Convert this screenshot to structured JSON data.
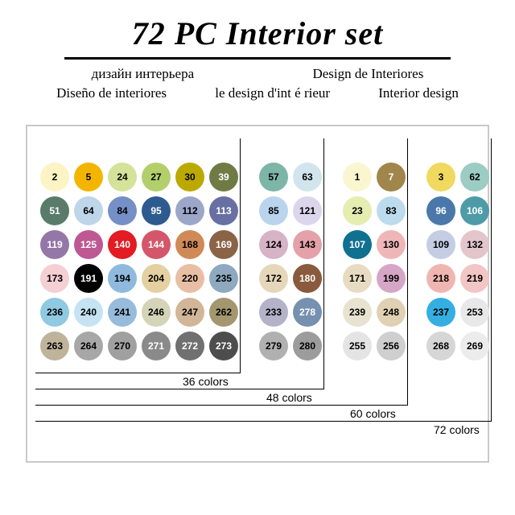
{
  "title": "72 PC Interior set",
  "subtitles_row1": [
    "дизайн интерьера",
    "Design de Interiores"
  ],
  "subtitles_row2": [
    "Diseño de interiores",
    "le design d'int é rieur",
    "Interior design"
  ],
  "circle_diameter": 36,
  "col_pitch": 42,
  "row_pitch": 42,
  "group_gap": 20,
  "font_num": 12,
  "groups": [
    {
      "cols": 6,
      "label": "36 colors",
      "swatches": [
        {
          "n": "2",
          "bg": "#fdf4c5",
          "fg": "#000"
        },
        {
          "n": "5",
          "bg": "#f3b500",
          "fg": "#000"
        },
        {
          "n": "24",
          "bg": "#d4e29a",
          "fg": "#000"
        },
        {
          "n": "27",
          "bg": "#b3cf6b",
          "fg": "#000"
        },
        {
          "n": "30",
          "bg": "#bba900",
          "fg": "#000"
        },
        {
          "n": "39",
          "bg": "#6f7b45",
          "fg": "#fff"
        },
        {
          "n": "51",
          "bg": "#5a7b6a",
          "fg": "#fff"
        },
        {
          "n": "64",
          "bg": "#bfd5e9",
          "fg": "#000"
        },
        {
          "n": "84",
          "bg": "#7590c7",
          "fg": "#000"
        },
        {
          "n": "95",
          "bg": "#2e5b8f",
          "fg": "#fff"
        },
        {
          "n": "112",
          "bg": "#9ca6c9",
          "fg": "#000"
        },
        {
          "n": "113",
          "bg": "#6870a3",
          "fg": "#fff"
        },
        {
          "n": "119",
          "bg": "#9477a7",
          "fg": "#fff"
        },
        {
          "n": "125",
          "bg": "#bd5893",
          "fg": "#fff"
        },
        {
          "n": "140",
          "bg": "#e31b23",
          "fg": "#fff"
        },
        {
          "n": "144",
          "bg": "#d4566a",
          "fg": "#fff"
        },
        {
          "n": "168",
          "bg": "#cf8a57",
          "fg": "#000"
        },
        {
          "n": "169",
          "bg": "#8b6347",
          "fg": "#fff"
        },
        {
          "n": "173",
          "bg": "#f4cfd3",
          "fg": "#000"
        },
        {
          "n": "191",
          "bg": "#000000",
          "fg": "#fff"
        },
        {
          "n": "194",
          "bg": "#8fbadd",
          "fg": "#000"
        },
        {
          "n": "204",
          "bg": "#e4d0a0",
          "fg": "#000"
        },
        {
          "n": "220",
          "bg": "#e8bfa4",
          "fg": "#000"
        },
        {
          "n": "235",
          "bg": "#8ea9c0",
          "fg": "#000"
        },
        {
          "n": "236",
          "bg": "#8fc9e2",
          "fg": "#000"
        },
        {
          "n": "240",
          "bg": "#c5e3f3",
          "fg": "#000"
        },
        {
          "n": "241",
          "bg": "#97bbdb",
          "fg": "#000"
        },
        {
          "n": "246",
          "bg": "#d4d4b8",
          "fg": "#000"
        },
        {
          "n": "247",
          "bg": "#d1b698",
          "fg": "#000"
        },
        {
          "n": "262",
          "bg": "#a3976f",
          "fg": "#000"
        },
        {
          "n": "263",
          "bg": "#bfb39c",
          "fg": "#000"
        },
        {
          "n": "264",
          "bg": "#a7a7a7",
          "fg": "#000"
        },
        {
          "n": "270",
          "bg": "#a0a0a0",
          "fg": "#000"
        },
        {
          "n": "271",
          "bg": "#8a8a8a",
          "fg": "#fff"
        },
        {
          "n": "272",
          "bg": "#707070",
          "fg": "#fff"
        },
        {
          "n": "273",
          "bg": "#4d4d4d",
          "fg": "#fff"
        }
      ]
    },
    {
      "cols": 2,
      "label": "48 colors",
      "swatches": [
        {
          "n": "57",
          "bg": "#7db6a6",
          "fg": "#000"
        },
        {
          "n": "63",
          "bg": "#d2e5ed",
          "fg": "#000"
        },
        {
          "n": "85",
          "bg": "#b9d4ed",
          "fg": "#000"
        },
        {
          "n": "121",
          "bg": "#dcd6ec",
          "fg": "#000"
        },
        {
          "n": "124",
          "bg": "#d6b3c6",
          "fg": "#000"
        },
        {
          "n": "143",
          "bg": "#e4a1a9",
          "fg": "#000"
        },
        {
          "n": "172",
          "bg": "#e6d7ba",
          "fg": "#000"
        },
        {
          "n": "180",
          "bg": "#8a5a3e",
          "fg": "#fff"
        },
        {
          "n": "233",
          "bg": "#b4b2c8",
          "fg": "#000"
        },
        {
          "n": "278",
          "bg": "#7691b0",
          "fg": "#fff"
        },
        {
          "n": "279",
          "bg": "#b0b0b0",
          "fg": "#000"
        },
        {
          "n": "280",
          "bg": "#9c9c9c",
          "fg": "#000"
        }
      ]
    },
    {
      "cols": 2,
      "label": "60 colors",
      "swatches": [
        {
          "n": "1",
          "bg": "#faf6d0",
          "fg": "#000"
        },
        {
          "n": "7",
          "bg": "#a0864b",
          "fg": "#fff"
        },
        {
          "n": "23",
          "bg": "#e5edb0",
          "fg": "#000"
        },
        {
          "n": "83",
          "bg": "#bcdced",
          "fg": "#000"
        },
        {
          "n": "107",
          "bg": "#107090",
          "fg": "#fff"
        },
        {
          "n": "130",
          "bg": "#efb6b8",
          "fg": "#000"
        },
        {
          "n": "171",
          "bg": "#e7dcc2",
          "fg": "#000"
        },
        {
          "n": "199",
          "bg": "#d6a6c6",
          "fg": "#000"
        },
        {
          "n": "239",
          "bg": "#e8e3d0",
          "fg": "#000"
        },
        {
          "n": "248",
          "bg": "#e0d1b4",
          "fg": "#000"
        },
        {
          "n": "255",
          "bg": "#e4e4e4",
          "fg": "#000"
        },
        {
          "n": "256",
          "bg": "#cfcfcf",
          "fg": "#000"
        }
      ]
    },
    {
      "cols": 2,
      "label": "72 colors",
      "swatches": [
        {
          "n": "3",
          "bg": "#f0d95e",
          "fg": "#000"
        },
        {
          "n": "62",
          "bg": "#9cccc4",
          "fg": "#000"
        },
        {
          "n": "96",
          "bg": "#4a78aa",
          "fg": "#fff"
        },
        {
          "n": "106",
          "bg": "#4e9ba8",
          "fg": "#fff"
        },
        {
          "n": "109",
          "bg": "#c4cde4",
          "fg": "#000"
        },
        {
          "n": "132",
          "bg": "#e2c6cc",
          "fg": "#000"
        },
        {
          "n": "218",
          "bg": "#efb6b1",
          "fg": "#000"
        },
        {
          "n": "219",
          "bg": "#f1c6c4",
          "fg": "#000"
        },
        {
          "n": "237",
          "bg": "#35aee2",
          "fg": "#000"
        },
        {
          "n": "253",
          "bg": "#e8e8e8",
          "fg": "#000"
        },
        {
          "n": "268",
          "bg": "#d6d6d6",
          "fg": "#000"
        },
        {
          "n": "269",
          "bg": "#ececec",
          "fg": "#000"
        }
      ]
    }
  ],
  "brackets": [
    {
      "right_col_end": 6,
      "label": "36 colors",
      "drop": 16
    },
    {
      "right_col_end": 8,
      "label": "48 colors",
      "drop": 36
    },
    {
      "right_col_end": 10,
      "label": "60 colors",
      "drop": 56
    },
    {
      "right_col_end": 12,
      "label": "72 colors",
      "drop": 76
    }
  ]
}
